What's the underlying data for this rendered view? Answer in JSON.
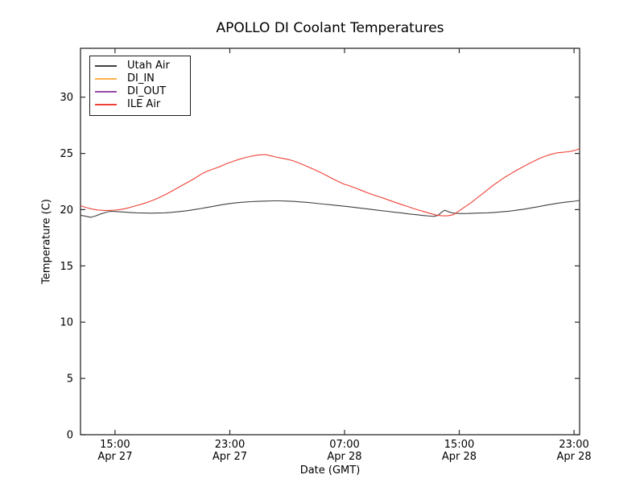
{
  "figure": {
    "background": "#ffffff",
    "frame_color": "#2b2b2b",
    "text_color": "#000000"
  },
  "chart_data": {
    "type": "line",
    "title": "APOLLO DI Coolant Temperatures",
    "xlabel": "Date (GMT)",
    "ylabel": "Temperature (C)",
    "x_unit": "hours since Apr 27 00:00 GMT",
    "xlim": [
      12.59,
      47.39
    ],
    "ylim": [
      0,
      34.34
    ],
    "grid": false,
    "legend_position": "upper left",
    "tick_direction": "in",
    "x_ticks": [
      {
        "value": 15,
        "label": "15:00",
        "sublabel": "Apr 27"
      },
      {
        "value": 23,
        "label": "23:00",
        "sublabel": "Apr 27"
      },
      {
        "value": 31,
        "label": "07:00",
        "sublabel": "Apr 28"
      },
      {
        "value": 39,
        "label": "15:00",
        "sublabel": "Apr 28"
      },
      {
        "value": 47,
        "label": "23:00",
        "sublabel": "Apr 28"
      }
    ],
    "y_ticks": [
      0,
      5,
      10,
      15,
      20,
      25,
      30
    ],
    "series": [
      {
        "name": "Utah Air",
        "color": "#404040",
        "points": [
          [
            12.6,
            19.5
          ],
          [
            12.8,
            19.45
          ],
          [
            13.0,
            19.4
          ],
          [
            13.3,
            19.32
          ],
          [
            13.6,
            19.42
          ],
          [
            14.0,
            19.62
          ],
          [
            14.4,
            19.78
          ],
          [
            14.7,
            19.85
          ],
          [
            15.0,
            19.84
          ],
          [
            15.4,
            19.8
          ],
          [
            16.0,
            19.75
          ],
          [
            16.5,
            19.72
          ],
          [
            17.0,
            19.7
          ],
          [
            17.5,
            19.69
          ],
          [
            18.0,
            19.7
          ],
          [
            18.5,
            19.72
          ],
          [
            19.0,
            19.77
          ],
          [
            19.5,
            19.83
          ],
          [
            20.0,
            19.9
          ],
          [
            20.5,
            20.0
          ],
          [
            21.0,
            20.1
          ],
          [
            21.5,
            20.22
          ],
          [
            22.0,
            20.33
          ],
          [
            22.5,
            20.45
          ],
          [
            23.0,
            20.55
          ],
          [
            23.5,
            20.62
          ],
          [
            24.0,
            20.67
          ],
          [
            24.5,
            20.71
          ],
          [
            25.0,
            20.74
          ],
          [
            25.5,
            20.76
          ],
          [
            26.0,
            20.78
          ],
          [
            26.5,
            20.78
          ],
          [
            27.0,
            20.76
          ],
          [
            27.5,
            20.73
          ],
          [
            28.0,
            20.68
          ],
          [
            28.5,
            20.63
          ],
          [
            29.0,
            20.57
          ],
          [
            29.5,
            20.5
          ],
          [
            30.0,
            20.44
          ],
          [
            30.5,
            20.37
          ],
          [
            31.0,
            20.3
          ],
          [
            31.5,
            20.23
          ],
          [
            32.0,
            20.15
          ],
          [
            32.5,
            20.08
          ],
          [
            33.0,
            20.0
          ],
          [
            33.5,
            19.92
          ],
          [
            34.0,
            19.85
          ],
          [
            34.5,
            19.77
          ],
          [
            35.0,
            19.7
          ],
          [
            35.5,
            19.62
          ],
          [
            36.0,
            19.55
          ],
          [
            36.5,
            19.48
          ],
          [
            37.0,
            19.42
          ],
          [
            37.2,
            19.4
          ],
          [
            37.5,
            19.48
          ],
          [
            37.8,
            19.8
          ],
          [
            38.0,
            19.95
          ],
          [
            38.2,
            19.83
          ],
          [
            38.5,
            19.72
          ],
          [
            38.8,
            19.67
          ],
          [
            39.2,
            19.65
          ],
          [
            39.6,
            19.66
          ],
          [
            40.0,
            19.68
          ],
          [
            40.5,
            19.7
          ],
          [
            41.0,
            19.72
          ],
          [
            41.5,
            19.76
          ],
          [
            42.0,
            19.81
          ],
          [
            42.5,
            19.87
          ],
          [
            43.0,
            19.95
          ],
          [
            43.5,
            20.04
          ],
          [
            44.0,
            20.15
          ],
          [
            44.5,
            20.26
          ],
          [
            45.0,
            20.38
          ],
          [
            45.5,
            20.49
          ],
          [
            46.0,
            20.6
          ],
          [
            46.5,
            20.68
          ],
          [
            47.0,
            20.75
          ],
          [
            47.39,
            20.82
          ]
        ]
      },
      {
        "name": "DI_IN",
        "color": "#ffb04d",
        "points": []
      },
      {
        "name": "DI_OUT",
        "color": "#9548a8",
        "points": []
      },
      {
        "name": "ILE Air",
        "color": "#ee4136",
        "points": [
          [
            12.6,
            20.35
          ],
          [
            13.0,
            20.18
          ],
          [
            13.4,
            20.05
          ],
          [
            13.8,
            19.97
          ],
          [
            14.2,
            19.93
          ],
          [
            14.6,
            19.93
          ],
          [
            15.0,
            19.96
          ],
          [
            15.4,
            20.02
          ],
          [
            15.8,
            20.12
          ],
          [
            16.2,
            20.25
          ],
          [
            16.6,
            20.4
          ],
          [
            17.0,
            20.55
          ],
          [
            17.4,
            20.72
          ],
          [
            17.8,
            20.92
          ],
          [
            18.2,
            21.15
          ],
          [
            18.6,
            21.4
          ],
          [
            19.0,
            21.68
          ],
          [
            19.4,
            21.96
          ],
          [
            19.8,
            22.25
          ],
          [
            20.2,
            22.53
          ],
          [
            20.6,
            22.82
          ],
          [
            21.0,
            23.15
          ],
          [
            21.3,
            23.35
          ],
          [
            21.6,
            23.5
          ],
          [
            22.0,
            23.68
          ],
          [
            22.4,
            23.87
          ],
          [
            22.8,
            24.1
          ],
          [
            23.2,
            24.28
          ],
          [
            23.6,
            24.45
          ],
          [
            24.0,
            24.6
          ],
          [
            24.4,
            24.72
          ],
          [
            24.8,
            24.82
          ],
          [
            25.2,
            24.88
          ],
          [
            25.5,
            24.9
          ],
          [
            25.8,
            24.8
          ],
          [
            26.2,
            24.68
          ],
          [
            26.6,
            24.58
          ],
          [
            27.0,
            24.48
          ],
          [
            27.4,
            24.35
          ],
          [
            27.8,
            24.15
          ],
          [
            28.2,
            23.95
          ],
          [
            28.6,
            23.72
          ],
          [
            29.0,
            23.5
          ],
          [
            29.4,
            23.26
          ],
          [
            29.8,
            23.0
          ],
          [
            30.2,
            22.72
          ],
          [
            30.6,
            22.48
          ],
          [
            31.0,
            22.25
          ],
          [
            31.4,
            22.1
          ],
          [
            31.8,
            21.9
          ],
          [
            32.2,
            21.7
          ],
          [
            32.6,
            21.5
          ],
          [
            33.0,
            21.32
          ],
          [
            33.4,
            21.15
          ],
          [
            33.8,
            20.98
          ],
          [
            34.2,
            20.8
          ],
          [
            34.6,
            20.62
          ],
          [
            35.0,
            20.45
          ],
          [
            35.4,
            20.28
          ],
          [
            35.8,
            20.1
          ],
          [
            36.2,
            19.95
          ],
          [
            36.6,
            19.8
          ],
          [
            37.0,
            19.65
          ],
          [
            37.4,
            19.52
          ],
          [
            37.8,
            19.45
          ],
          [
            38.2,
            19.45
          ],
          [
            38.6,
            19.55
          ],
          [
            39.0,
            19.9
          ],
          [
            39.4,
            20.25
          ],
          [
            39.8,
            20.6
          ],
          [
            40.2,
            21.0
          ],
          [
            40.6,
            21.4
          ],
          [
            41.0,
            21.8
          ],
          [
            41.4,
            22.2
          ],
          [
            41.8,
            22.55
          ],
          [
            42.2,
            22.9
          ],
          [
            42.6,
            23.2
          ],
          [
            43.0,
            23.5
          ],
          [
            43.4,
            23.78
          ],
          [
            43.8,
            24.05
          ],
          [
            44.2,
            24.3
          ],
          [
            44.6,
            24.55
          ],
          [
            45.0,
            24.75
          ],
          [
            45.4,
            24.92
          ],
          [
            45.8,
            25.05
          ],
          [
            46.2,
            25.1
          ],
          [
            46.6,
            25.15
          ],
          [
            47.0,
            25.25
          ],
          [
            47.2,
            25.32
          ],
          [
            47.39,
            25.45
          ]
        ]
      }
    ]
  }
}
